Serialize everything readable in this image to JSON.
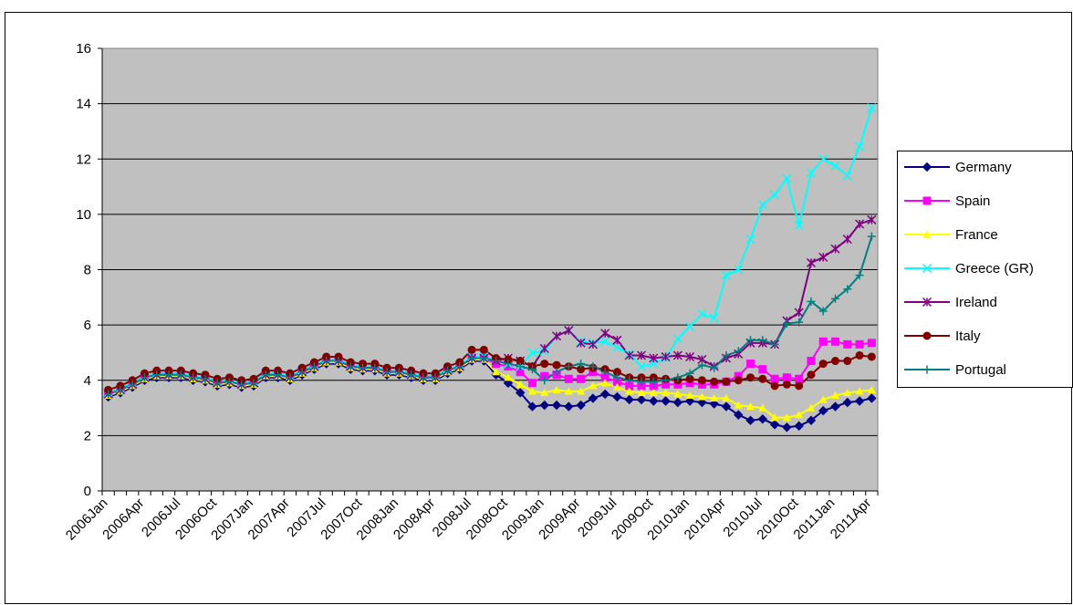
{
  "chart_data": {
    "type": "line",
    "categories": [
      "2006Jan",
      null,
      null,
      "2006Apr",
      null,
      null,
      "2006Jul",
      null,
      null,
      "2006Oct",
      null,
      null,
      "2007Jan",
      null,
      null,
      "2007Apr",
      null,
      null,
      "2007Jul",
      null,
      null,
      "2007Oct",
      null,
      null,
      "2008Jan",
      null,
      null,
      "2008Apr",
      null,
      null,
      "2008Jul",
      null,
      null,
      "2008Oct",
      null,
      null,
      "2009Jan",
      null,
      null,
      "2009Apr",
      null,
      null,
      "2009Jul",
      null,
      null,
      "2009Oct",
      null,
      null,
      "2010Jan",
      null,
      null,
      "2010Apr",
      null,
      null,
      "2010Jul",
      null,
      null,
      "2010Oct",
      null,
      null,
      "2011Jan",
      null,
      null,
      "2011Apr"
    ],
    "series": [
      {
        "name": "Germany",
        "color": "#000080",
        "marker": "diamond",
        "values": [
          3.4,
          3.55,
          3.75,
          4.0,
          4.1,
          4.1,
          4.1,
          4.0,
          3.95,
          3.8,
          3.85,
          3.75,
          3.8,
          4.1,
          4.1,
          4.0,
          4.2,
          4.4,
          4.6,
          4.6,
          4.4,
          4.35,
          4.35,
          4.2,
          4.2,
          4.1,
          4.0,
          4.0,
          4.25,
          4.4,
          4.7,
          4.7,
          4.2,
          3.9,
          3.55,
          3.05,
          3.1,
          3.1,
          3.05,
          3.1,
          3.35,
          3.5,
          3.4,
          3.3,
          3.3,
          3.25,
          3.25,
          3.2,
          3.25,
          3.2,
          3.15,
          3.05,
          2.75,
          2.55,
          2.6,
          2.4,
          2.3,
          2.35,
          2.55,
          2.9,
          3.05,
          3.2,
          3.25,
          3.35
        ]
      },
      {
        "name": "Spain",
        "color": "#ff00ff",
        "marker": "square",
        "values": [
          3.5,
          3.65,
          3.85,
          4.1,
          4.2,
          4.2,
          4.2,
          4.1,
          4.05,
          3.9,
          3.95,
          3.85,
          3.9,
          4.2,
          4.2,
          4.1,
          4.3,
          4.5,
          4.7,
          4.7,
          4.5,
          4.45,
          4.45,
          4.3,
          4.3,
          4.2,
          4.1,
          4.1,
          4.35,
          4.5,
          4.8,
          4.8,
          4.6,
          4.5,
          4.3,
          3.9,
          4.15,
          4.2,
          4.05,
          4.05,
          4.3,
          4.1,
          3.95,
          3.8,
          3.8,
          3.8,
          3.85,
          3.85,
          3.9,
          3.85,
          3.85,
          3.95,
          4.15,
          4.6,
          4.4,
          4.05,
          4.1,
          4.05,
          4.7,
          5.4,
          5.4,
          5.3,
          5.3,
          5.35
        ]
      },
      {
        "name": "France",
        "color": "#ffff00",
        "marker": "triangle",
        "values": [
          3.45,
          3.6,
          3.8,
          4.05,
          4.15,
          4.15,
          4.15,
          4.05,
          4.0,
          3.85,
          3.9,
          3.8,
          3.85,
          4.15,
          4.15,
          4.05,
          4.25,
          4.45,
          4.65,
          4.65,
          4.45,
          4.4,
          4.4,
          4.25,
          4.25,
          4.15,
          4.05,
          4.05,
          4.3,
          4.45,
          4.75,
          4.75,
          4.3,
          4.1,
          3.85,
          3.6,
          3.55,
          3.65,
          3.6,
          3.6,
          3.8,
          3.9,
          3.75,
          3.6,
          3.55,
          3.55,
          3.55,
          3.5,
          3.45,
          3.4,
          3.35,
          3.35,
          3.1,
          3.05,
          3.0,
          2.65,
          2.65,
          2.75,
          3.0,
          3.3,
          3.45,
          3.55,
          3.6,
          3.65
        ]
      },
      {
        "name": "Greece (GR)",
        "color": "#00ffff",
        "marker": "x",
        "values": [
          3.55,
          3.7,
          3.9,
          4.15,
          4.25,
          4.25,
          4.25,
          4.15,
          4.1,
          3.95,
          4.0,
          3.9,
          3.95,
          4.25,
          4.25,
          4.15,
          4.35,
          4.55,
          4.75,
          4.75,
          4.55,
          4.5,
          4.5,
          4.35,
          4.35,
          4.25,
          4.15,
          4.15,
          4.4,
          4.55,
          4.85,
          4.85,
          4.7,
          4.6,
          4.5,
          5.0,
          5.05,
          5.6,
          5.8,
          5.4,
          5.35,
          5.4,
          5.2,
          4.95,
          4.5,
          4.6,
          4.8,
          5.5,
          5.95,
          6.4,
          6.25,
          7.8,
          8.0,
          9.1,
          10.35,
          10.7,
          11.3,
          9.6,
          11.5,
          12.0,
          11.75,
          11.4,
          12.45,
          13.85
        ]
      },
      {
        "name": "Ireland",
        "color": "#800080",
        "marker": "star",
        "values": [
          3.5,
          3.65,
          3.85,
          4.1,
          4.2,
          4.2,
          4.2,
          4.1,
          4.05,
          3.9,
          3.95,
          3.85,
          3.9,
          4.2,
          4.2,
          4.1,
          4.3,
          4.5,
          4.7,
          4.7,
          4.5,
          4.45,
          4.45,
          4.3,
          4.3,
          4.2,
          4.1,
          4.1,
          4.35,
          4.5,
          4.8,
          4.8,
          4.7,
          4.8,
          4.7,
          4.5,
          5.15,
          5.6,
          5.8,
          5.35,
          5.3,
          5.7,
          5.45,
          4.9,
          4.9,
          4.8,
          4.85,
          4.9,
          4.85,
          4.75,
          4.5,
          4.8,
          4.95,
          5.35,
          5.35,
          5.3,
          6.15,
          6.45,
          8.25,
          8.45,
          8.75,
          9.1,
          9.65,
          9.8
        ]
      },
      {
        "name": "Italy",
        "color": "#800000",
        "marker": "circle",
        "values": [
          3.65,
          3.8,
          4.0,
          4.25,
          4.35,
          4.35,
          4.35,
          4.25,
          4.2,
          4.05,
          4.1,
          4.0,
          4.05,
          4.35,
          4.35,
          4.25,
          4.45,
          4.65,
          4.85,
          4.85,
          4.65,
          4.6,
          4.6,
          4.45,
          4.45,
          4.35,
          4.25,
          4.25,
          4.5,
          4.65,
          5.1,
          5.1,
          4.8,
          4.75,
          4.7,
          4.5,
          4.6,
          4.55,
          4.5,
          4.4,
          4.45,
          4.4,
          4.3,
          4.1,
          4.1,
          4.1,
          4.05,
          4.0,
          4.05,
          4.0,
          3.95,
          3.95,
          4.0,
          4.1,
          4.05,
          3.8,
          3.85,
          3.8,
          4.2,
          4.6,
          4.7,
          4.7,
          4.9,
          4.85
        ]
      },
      {
        "name": "Portugal",
        "color": "#008080",
        "marker": "plus",
        "values": [
          3.5,
          3.65,
          3.85,
          4.1,
          4.2,
          4.2,
          4.2,
          4.1,
          4.05,
          3.9,
          3.95,
          3.85,
          3.9,
          4.2,
          4.2,
          4.1,
          4.3,
          4.5,
          4.7,
          4.7,
          4.5,
          4.45,
          4.45,
          4.3,
          4.3,
          4.2,
          4.1,
          4.1,
          4.35,
          4.5,
          4.8,
          4.8,
          4.7,
          4.6,
          4.5,
          4.4,
          4.0,
          4.3,
          4.5,
          4.6,
          4.5,
          4.3,
          4.1,
          4.0,
          3.95,
          3.95,
          4.0,
          4.1,
          4.25,
          4.55,
          4.45,
          4.9,
          5.05,
          5.45,
          5.45,
          5.3,
          6.05,
          6.1,
          6.85,
          6.5,
          6.95,
          7.3,
          7.8,
          9.2
        ]
      }
    ],
    "ylim": [
      0,
      16
    ],
    "yticks": [
      0,
      2,
      4,
      6,
      8,
      10,
      12,
      14,
      16
    ],
    "grid": true,
    "legend": "right"
  }
}
